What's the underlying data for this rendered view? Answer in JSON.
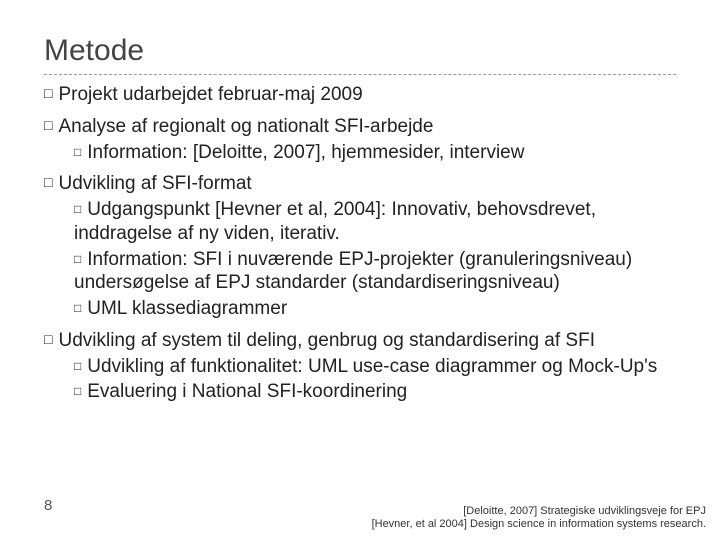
{
  "title": "Metode",
  "bullets": {
    "b1": {
      "label": "Projekt",
      "rest": " udarbejdet februar-maj 2009"
    },
    "b2": {
      "label": "Analyse",
      "rest": " af regionalt og nationalt SFI-arbejde",
      "sub": [
        "Information: [Deloitte, 2007], hjemmesider, interview"
      ]
    },
    "b3": {
      "label": "Udvikling",
      "rest": " af SFI-format",
      "sub": [
        "Udgangspunkt [Hevner et al, 2004]: Innovativ, behovsdrevet, inddragelse af ny viden, iterativ.",
        "Information: SFI i nuværende EPJ-projekter (granuleringsniveau) undersøgelse af EPJ standarder (standardiseringsniveau)",
        "UML klassediagrammer"
      ]
    },
    "b4": {
      "label": "Udvikling",
      "rest": " af system til deling, genbrug og standardisering af SFI",
      "sub": [
        "Udvikling af funktionalitet: UML use-case diagrammer og Mock-Up's",
        "Evaluering i National SFI-koordinering"
      ]
    }
  },
  "page_number": "8",
  "refs": [
    "[Deloitte, 2007] Strategiske udviklingsveje for EPJ",
    "[Hevner, et al 2004] Design science in information systems research."
  ],
  "glyph": "□"
}
